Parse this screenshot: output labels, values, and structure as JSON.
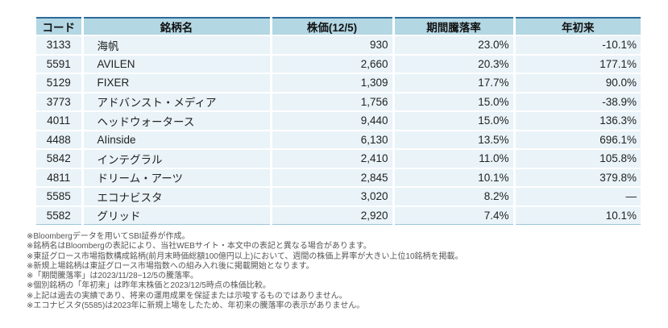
{
  "table": {
    "columns": {
      "code": "コード",
      "name": "銘柄名",
      "price": "株価(12/5)",
      "period": "期間騰落率",
      "ytd": "年初来"
    },
    "rows": [
      {
        "code": "3133",
        "name": "海帆",
        "price": "930",
        "period": "23.0%",
        "ytd": "-10.1%"
      },
      {
        "code": "5591",
        "name": "AVILEN",
        "price": "2,660",
        "period": "20.3%",
        "ytd": "177.1%"
      },
      {
        "code": "5129",
        "name": "FIXER",
        "price": "1,309",
        "period": "17.7%",
        "ytd": "90.0%"
      },
      {
        "code": "3773",
        "name": "アドバンスト・メディア",
        "price": "1,756",
        "period": "15.0%",
        "ytd": "-38.9%"
      },
      {
        "code": "4011",
        "name": "ヘッドウォータース",
        "price": "9,440",
        "period": "15.0%",
        "ytd": "136.3%"
      },
      {
        "code": "4488",
        "name": "AIinside",
        "price": "6,130",
        "period": "13.5%",
        "ytd": "696.1%"
      },
      {
        "code": "5842",
        "name": "インテグラル",
        "price": "2,410",
        "period": "11.0%",
        "ytd": "105.8%"
      },
      {
        "code": "4811",
        "name": "ドリーム・アーツ",
        "price": "2,845",
        "period": "10.1%",
        "ytd": "379.8%"
      },
      {
        "code": "5585",
        "name": "エコナビスタ",
        "price": "3,020",
        "period": "8.2%",
        "ytd": "―"
      },
      {
        "code": "5582",
        "name": "グリッド",
        "price": "2,920",
        "period": "7.4%",
        "ytd": "10.1%"
      }
    ]
  },
  "footnotes": [
    "※Bloombergデータを用いてSBI証券が作成。",
    "※銘柄名はBloombergの表記により、当社WEBサイト・本文中の表記と異なる場合があります。",
    "※東証グロース市場指数構成銘柄(前月末時価総額100億円以上)において、週間の株価上昇率が大きい上位10銘柄を掲載。",
    "※新規上場銘柄は東証グロース市場指数への組み入れ後に掲載開始となります。",
    "※「期間騰落率」は2023/11/28~12/5の騰落率。",
    "※個別銘柄の「年初来」は昨年末株価と2023/12/5時点の株価比較。",
    "※上記は過去の実績であり、将来の運用成果を保証または示唆するものではありません。",
    "※エコナビスタ(5585)は2023年に新規上場をしたため、年初来の騰落率の表示がありません。"
  ],
  "colors": {
    "header_bg": "#b3d7e3",
    "row_bg": "#e9f3f8",
    "top_border": "#2c6b9a",
    "bottom_border": "#9dc7d9",
    "note_text": "#555555"
  }
}
